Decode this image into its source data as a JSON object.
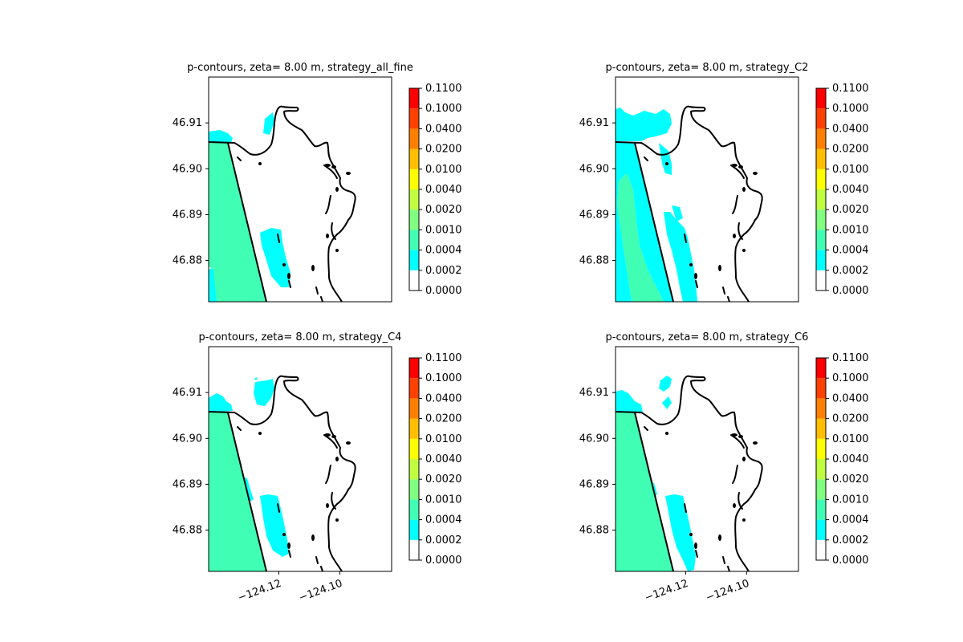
{
  "chart_data": [
    {
      "type": "contour_map",
      "title": "p-contours, zeta= 8.00 m, strategy_all_fine",
      "yticks": [
        "46.91",
        "46.90",
        "46.89",
        "46.88"
      ],
      "ytick_values": [
        46.91,
        46.9,
        46.89,
        46.88
      ],
      "xticks": [],
      "xlim": [
        -124.143,
        -124.083
      ],
      "ylim": [
        46.871,
        46.92
      ],
      "colorbar": {
        "levels": [
          "0.0000",
          "0.0002",
          "0.0004",
          "0.0010",
          "0.0020",
          "0.0040",
          "0.0100",
          "0.0200",
          "0.0400",
          "0.1000",
          "0.1100"
        ],
        "colors": [
          "#ffffff",
          "#00ffff",
          "#40ffb4",
          "#80ff80",
          "#c0ff40",
          "#ffff00",
          "#ffbf00",
          "#ff8000",
          "#ff4000",
          "#ff0000"
        ]
      },
      "fill_level_a": "0.0002–0.0004",
      "fill_level_b": "0.0004–0.0010"
    },
    {
      "type": "contour_map",
      "title": "p-contours, zeta= 8.00 m, strategy_C2",
      "yticks": [
        "46.91",
        "46.90",
        "46.89",
        "46.88"
      ],
      "ytick_values": [
        46.91,
        46.9,
        46.89,
        46.88
      ],
      "xticks": [],
      "xlim": [
        -124.143,
        -124.083
      ],
      "ylim": [
        46.871,
        46.92
      ],
      "colorbar": {
        "levels": [
          "0.0000",
          "0.0002",
          "0.0004",
          "0.0010",
          "0.0020",
          "0.0040",
          "0.0100",
          "0.0200",
          "0.0400",
          "0.1000",
          "0.1100"
        ],
        "colors": [
          "#ffffff",
          "#00ffff",
          "#40ffb4",
          "#80ff80",
          "#c0ff40",
          "#ffff00",
          "#ffbf00",
          "#ff8000",
          "#ff4000",
          "#ff0000"
        ]
      },
      "fill_level_a": "0.0002–0.0004",
      "fill_level_b": "0.0004–0.0010"
    },
    {
      "type": "contour_map",
      "title": "p-contours, zeta= 8.00 m, strategy_C4",
      "yticks": [
        "46.91",
        "46.90",
        "46.89",
        "46.88"
      ],
      "ytick_values": [
        46.91,
        46.9,
        46.89,
        46.88
      ],
      "xticks": [
        "−124.12",
        "−124.10"
      ],
      "xtick_values": [
        -124.12,
        -124.1
      ],
      "xlim": [
        -124.143,
        -124.083
      ],
      "ylim": [
        46.871,
        46.92
      ],
      "colorbar": {
        "levels": [
          "0.0000",
          "0.0002",
          "0.0004",
          "0.0010",
          "0.0020",
          "0.0040",
          "0.0100",
          "0.0200",
          "0.0400",
          "0.1000",
          "0.1100"
        ],
        "colors": [
          "#ffffff",
          "#00ffff",
          "#40ffb4",
          "#80ff80",
          "#c0ff40",
          "#ffff00",
          "#ffbf00",
          "#ff8000",
          "#ff4000",
          "#ff0000"
        ]
      },
      "fill_level_a": "0.0002–0.0004",
      "fill_level_b": "0.0004–0.0010"
    },
    {
      "type": "contour_map",
      "title": "p-contours, zeta= 8.00 m, strategy_C6",
      "yticks": [
        "46.91",
        "46.90",
        "46.89",
        "46.88"
      ],
      "ytick_values": [
        46.91,
        46.9,
        46.89,
        46.88
      ],
      "xticks": [
        "−124.12",
        "−124.10"
      ],
      "xtick_values": [
        -124.12,
        -124.1
      ],
      "xlim": [
        -124.143,
        -124.083
      ],
      "ylim": [
        46.871,
        46.92
      ],
      "colorbar": {
        "levels": [
          "0.0000",
          "0.0002",
          "0.0004",
          "0.0010",
          "0.0020",
          "0.0040",
          "0.0100",
          "0.0200",
          "0.0400",
          "0.1000",
          "0.1100"
        ],
        "colors": [
          "#ffffff",
          "#00ffff",
          "#40ffb4",
          "#80ff80",
          "#c0ff40",
          "#ffff00",
          "#ffbf00",
          "#ff8000",
          "#ff4000",
          "#ff0000"
        ]
      },
      "fill_level_a": "0.0002–0.0004",
      "fill_level_b": "0.0004–0.0010"
    }
  ]
}
